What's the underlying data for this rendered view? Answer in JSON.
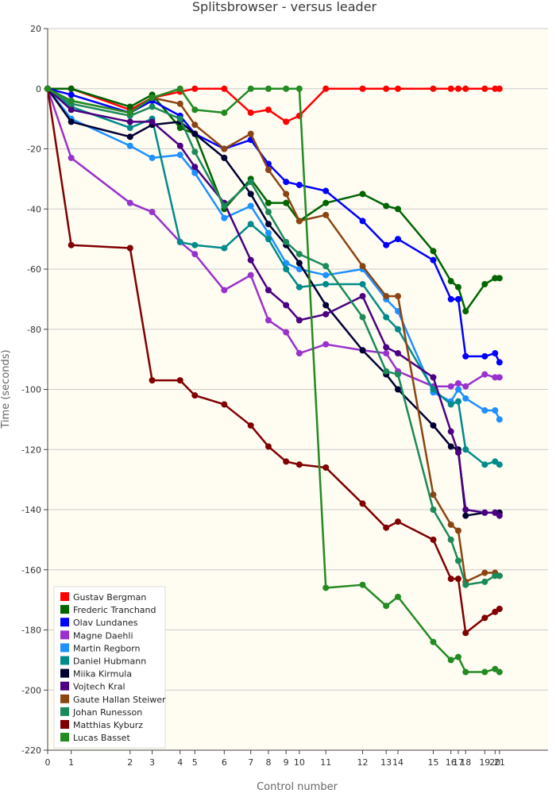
{
  "chart_data": {
    "type": "line",
    "title": "Splitsbrowser - versus leader",
    "xlabel": "Control number",
    "ylabel": "Time (seconds)",
    "ylim": [
      -220,
      20
    ],
    "yticks": [
      20,
      0,
      -20,
      -40,
      -60,
      -80,
      -100,
      -120,
      -140,
      -160,
      -180,
      -200,
      -220
    ],
    "xlim": [
      0,
      170
    ],
    "xticks": [
      {
        "label": "0",
        "x": 0
      },
      {
        "label": "1",
        "x": 8
      },
      {
        "label": "2",
        "x": 28
      },
      {
        "label": "3",
        "x": 35.5
      },
      {
        "label": "4",
        "x": 45
      },
      {
        "label": "5",
        "x": 50
      },
      {
        "label": "6",
        "x": 60
      },
      {
        "label": "7",
        "x": 69
      },
      {
        "label": "8",
        "x": 75
      },
      {
        "label": "9",
        "x": 81
      },
      {
        "label": "10",
        "x": 85.5
      },
      {
        "label": "11",
        "x": 94.5
      },
      {
        "label": "12",
        "x": 107
      },
      {
        "label": "13",
        "x": 115
      },
      {
        "label": "14",
        "x": 119
      },
      {
        "label": "15",
        "x": 131
      },
      {
        "label": "16",
        "x": 137
      },
      {
        "label": "17",
        "x": 139.5
      },
      {
        "label": "18",
        "x": 142
      },
      {
        "label": "19",
        "x": 148.5
      },
      {
        "label": "20",
        "x": 152
      },
      {
        "label": "21",
        "x": 153.5
      }
    ],
    "grid": "horizontal",
    "legend_position": "bottom-left",
    "background": "#fffcf2",
    "series": [
      {
        "name": "Gustav Bergman",
        "color": "#ff0000",
        "points": [
          [
            0,
            0
          ],
          [
            8,
            0
          ],
          [
            28,
            -7
          ],
          [
            35.5,
            -3
          ],
          [
            45,
            -1
          ],
          [
            50,
            0
          ],
          [
            60,
            0
          ],
          [
            69,
            -8
          ],
          [
            75,
            -7
          ],
          [
            81,
            -11
          ],
          [
            85.5,
            -9
          ],
          [
            94.5,
            0
          ],
          [
            107,
            0
          ],
          [
            115,
            0
          ],
          [
            119,
            0
          ],
          [
            131,
            0
          ],
          [
            137,
            0
          ],
          [
            139.5,
            0
          ],
          [
            142,
            0
          ],
          [
            148.5,
            0
          ],
          [
            152,
            0
          ],
          [
            153.5,
            0
          ]
        ]
      },
      {
        "name": "Frederic Tranchand",
        "color": "#006400",
        "points": [
          [
            0,
            0
          ],
          [
            8,
            0
          ],
          [
            28,
            -6
          ],
          [
            35.5,
            -2
          ],
          [
            45,
            -13
          ],
          [
            50,
            -15
          ],
          [
            60,
            -40
          ],
          [
            69,
            -30
          ],
          [
            75,
            -38
          ],
          [
            81,
            -38
          ],
          [
            85.5,
            -44
          ],
          [
            94.5,
            -38
          ],
          [
            107,
            -35
          ],
          [
            115,
            -39
          ],
          [
            119,
            -40
          ],
          [
            131,
            -54
          ],
          [
            137,
            -64
          ],
          [
            139.5,
            -66
          ],
          [
            142,
            -74
          ],
          [
            148.5,
            -65
          ],
          [
            152,
            -63
          ],
          [
            153.5,
            -63
          ]
        ]
      },
      {
        "name": "Olav Lundanes",
        "color": "#0000ff",
        "points": [
          [
            0,
            0
          ],
          [
            8,
            -2
          ],
          [
            28,
            -8
          ],
          [
            35.5,
            -4
          ],
          [
            45,
            -9
          ],
          [
            50,
            -15
          ],
          [
            60,
            -20
          ],
          [
            69,
            -17
          ],
          [
            75,
            -25
          ],
          [
            81,
            -31
          ],
          [
            85.5,
            -32
          ],
          [
            94.5,
            -34
          ],
          [
            107,
            -44
          ],
          [
            115,
            -52
          ],
          [
            119,
            -50
          ],
          [
            131,
            -57
          ],
          [
            137,
            -70
          ],
          [
            139.5,
            -70
          ],
          [
            142,
            -89
          ],
          [
            148.5,
            -89
          ],
          [
            152,
            -88
          ],
          [
            153.5,
            -91
          ]
        ]
      },
      {
        "name": "Magne Daehli",
        "color": "#9932cc",
        "points": [
          [
            0,
            0
          ],
          [
            8,
            -23
          ],
          [
            28,
            -38
          ],
          [
            35.5,
            -41
          ],
          [
            45,
            -51
          ],
          [
            50,
            -55
          ],
          [
            60,
            -67
          ],
          [
            69,
            -62
          ],
          [
            75,
            -77
          ],
          [
            81,
            -81
          ],
          [
            85.5,
            -88
          ],
          [
            94.5,
            -85
          ],
          [
            107,
            -87
          ],
          [
            115,
            -88
          ],
          [
            119,
            -94
          ],
          [
            131,
            -99
          ],
          [
            137,
            -99
          ],
          [
            139.5,
            -98
          ],
          [
            142,
            -99
          ],
          [
            148.5,
            -95
          ],
          [
            152,
            -96
          ],
          [
            153.5,
            -96
          ]
        ]
      },
      {
        "name": "Martin Regborn",
        "color": "#1e90ff",
        "points": [
          [
            0,
            0
          ],
          [
            8,
            -10
          ],
          [
            28,
            -19
          ],
          [
            35.5,
            -23
          ],
          [
            45,
            -22
          ],
          [
            50,
            -28
          ],
          [
            60,
            -43
          ],
          [
            69,
            -39
          ],
          [
            75,
            -48
          ],
          [
            81,
            -58
          ],
          [
            85.5,
            -60
          ],
          [
            94.5,
            -62
          ],
          [
            107,
            -60
          ],
          [
            115,
            -70
          ],
          [
            119,
            -74
          ],
          [
            131,
            -101
          ],
          [
            137,
            -104
          ],
          [
            139.5,
            -100
          ],
          [
            142,
            -103
          ],
          [
            148.5,
            -107
          ],
          [
            152,
            -107
          ],
          [
            153.5,
            -110
          ]
        ]
      },
      {
        "name": "Daniel Hubmann",
        "color": "#008b8b",
        "points": [
          [
            0,
            0
          ],
          [
            8,
            -6
          ],
          [
            28,
            -13
          ],
          [
            35.5,
            -10
          ],
          [
            45,
            -51
          ],
          [
            50,
            -52
          ],
          [
            60,
            -53
          ],
          [
            69,
            -45
          ],
          [
            75,
            -50
          ],
          [
            81,
            -60
          ],
          [
            85.5,
            -66
          ],
          [
            94.5,
            -65
          ],
          [
            107,
            -65
          ],
          [
            115,
            -76
          ],
          [
            119,
            -80
          ],
          [
            131,
            -100
          ],
          [
            137,
            -105
          ],
          [
            139.5,
            -104
          ],
          [
            142,
            -120
          ],
          [
            148.5,
            -125
          ],
          [
            152,
            -124
          ],
          [
            153.5,
            -125
          ]
        ]
      },
      {
        "name": "Miika Kirmula",
        "color": "#000033",
        "points": [
          [
            0,
            0
          ],
          [
            8,
            -11
          ],
          [
            28,
            -16
          ],
          [
            35.5,
            -12
          ],
          [
            45,
            -11
          ],
          [
            50,
            -15
          ],
          [
            60,
            -23
          ],
          [
            69,
            -35
          ],
          [
            75,
            -45
          ],
          [
            81,
            -52
          ],
          [
            85.5,
            -58
          ],
          [
            94.5,
            -72
          ],
          [
            107,
            -87
          ],
          [
            115,
            -95
          ],
          [
            119,
            -100
          ],
          [
            131,
            -112
          ],
          [
            137,
            -119
          ],
          [
            139.5,
            -120
          ],
          [
            142,
            -142
          ],
          [
            148.5,
            -141
          ],
          [
            152,
            -141
          ],
          [
            153.5,
            -141
          ]
        ]
      },
      {
        "name": "Vojtech Kral",
        "color": "#4b0082",
        "points": [
          [
            0,
            0
          ],
          [
            8,
            -7
          ],
          [
            28,
            -11
          ],
          [
            35.5,
            -11
          ],
          [
            45,
            -19
          ],
          [
            50,
            -26
          ],
          [
            60,
            -38
          ],
          [
            69,
            -57
          ],
          [
            75,
            -67
          ],
          [
            81,
            -72
          ],
          [
            85.5,
            -77
          ],
          [
            94.5,
            -75
          ],
          [
            107,
            -69
          ],
          [
            115,
            -86
          ],
          [
            119,
            -88
          ],
          [
            131,
            -96
          ],
          [
            137,
            -114
          ],
          [
            139.5,
            -121
          ],
          [
            142,
            -140
          ],
          [
            148.5,
            -141
          ],
          [
            152,
            -141
          ],
          [
            153.5,
            -142
          ]
        ]
      },
      {
        "name": "Gaute Hallan Steiwer",
        "color": "#8b4513",
        "points": [
          [
            0,
            0
          ],
          [
            8,
            -4
          ],
          [
            28,
            -8
          ],
          [
            35.5,
            -3
          ],
          [
            45,
            -5
          ],
          [
            50,
            -12
          ],
          [
            60,
            -20
          ],
          [
            69,
            -15
          ],
          [
            75,
            -27
          ],
          [
            81,
            -35
          ],
          [
            85.5,
            -44
          ],
          [
            94.5,
            -42
          ],
          [
            107,
            -59
          ],
          [
            115,
            -69
          ],
          [
            119,
            -69
          ],
          [
            131,
            -135
          ],
          [
            137,
            -145
          ],
          [
            139.5,
            -147
          ],
          [
            142,
            -164
          ],
          [
            148.5,
            -161
          ],
          [
            152,
            -161
          ],
          [
            153.5,
            -162
          ]
        ]
      },
      {
        "name": "Johan Runesson",
        "color": "#1a8a5a",
        "points": [
          [
            0,
            0
          ],
          [
            8,
            -5
          ],
          [
            28,
            -9
          ],
          [
            35.5,
            -6
          ],
          [
            45,
            -10
          ],
          [
            50,
            -21
          ],
          [
            60,
            -39
          ],
          [
            69,
            -31
          ],
          [
            75,
            -41
          ],
          [
            81,
            -51
          ],
          [
            85.5,
            -55
          ],
          [
            94.5,
            -59
          ],
          [
            107,
            -76
          ],
          [
            115,
            -94
          ],
          [
            119,
            -95
          ],
          [
            131,
            -140
          ],
          [
            137,
            -150
          ],
          [
            139.5,
            -157
          ],
          [
            142,
            -165
          ],
          [
            148.5,
            -164
          ],
          [
            152,
            -162
          ],
          [
            153.5,
            -162
          ]
        ]
      },
      {
        "name": "Matthias Kyburz",
        "color": "#800000",
        "points": [
          [
            0,
            0
          ],
          [
            8,
            -52
          ],
          [
            28,
            -53
          ],
          [
            35.5,
            -97
          ],
          [
            45,
            -97
          ],
          [
            50,
            -102
          ],
          [
            60,
            -105
          ],
          [
            69,
            -112
          ],
          [
            75,
            -119
          ],
          [
            81,
            -124
          ],
          [
            85.5,
            -125
          ],
          [
            94.5,
            -126
          ],
          [
            107,
            -138
          ],
          [
            115,
            -146
          ],
          [
            119,
            -144
          ],
          [
            131,
            -150
          ],
          [
            137,
            -163
          ],
          [
            139.5,
            -163
          ],
          [
            142,
            -181
          ],
          [
            148.5,
            -176
          ],
          [
            152,
            -174
          ],
          [
            153.5,
            -173
          ]
        ]
      },
      {
        "name": "Lucas Basset",
        "color": "#228b22",
        "points": [
          [
            0,
            0
          ],
          [
            8,
            -4
          ],
          [
            28,
            -8
          ],
          [
            35.5,
            -3
          ],
          [
            45,
            0
          ],
          [
            50,
            -7
          ],
          [
            60,
            -8
          ],
          [
            69,
            0
          ],
          [
            75,
            0
          ],
          [
            81,
            0
          ],
          [
            85.5,
            0
          ],
          [
            94.5,
            -166
          ],
          [
            107,
            -165
          ],
          [
            115,
            -172
          ],
          [
            119,
            -169
          ],
          [
            131,
            -184
          ],
          [
            137,
            -190
          ],
          [
            139.5,
            -189
          ],
          [
            142,
            -194
          ],
          [
            148.5,
            -194
          ],
          [
            152,
            -193
          ],
          [
            153.5,
            -194
          ]
        ]
      }
    ]
  }
}
